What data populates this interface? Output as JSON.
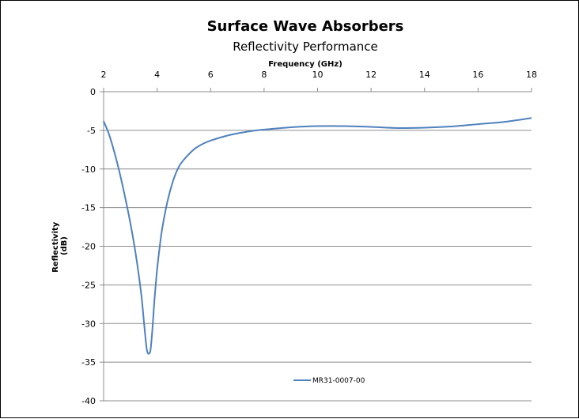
{
  "chart_data": {
    "type": "line",
    "title": "Surface Wave Absorbers",
    "subtitle": "Reflectivity Performance",
    "xlabel": "Frequency (GHz)",
    "ylabel": "Reflectivity (dB)",
    "xlim": [
      2,
      18
    ],
    "ylim": [
      -40,
      0
    ],
    "x_ticks": [
      2,
      4,
      6,
      8,
      10,
      12,
      14,
      16,
      18
    ],
    "y_ticks": [
      0,
      -5,
      -10,
      -15,
      -20,
      -25,
      -30,
      -35,
      -40
    ],
    "x_axis_position": "top",
    "grid": true,
    "legend_position": "bottom-center",
    "series": [
      {
        "name": "MR31-0007-00",
        "color": "#4f81bd",
        "x": [
          2,
          2.2,
          2.4,
          2.6,
          2.8,
          3.0,
          3.2,
          3.4,
          3.5,
          3.6,
          3.65,
          3.7,
          3.75,
          3.8,
          3.85,
          3.9,
          4.0,
          4.1,
          4.2,
          4.4,
          4.6,
          4.8,
          5.0,
          5.4,
          5.8,
          6.2,
          6.6,
          7.0,
          7.5,
          8.0,
          9.0,
          10.0,
          11.0,
          12.0,
          13.0,
          14.0,
          15.0,
          16.0,
          17.0,
          18.0
        ],
        "y": [
          -3.8,
          -5.5,
          -7.8,
          -10.5,
          -13.6,
          -17.0,
          -21.0,
          -26.0,
          -29.5,
          -33.0,
          -33.8,
          -33.9,
          -33.5,
          -31.8,
          -29.5,
          -27.0,
          -23.0,
          -20.0,
          -17.5,
          -14.0,
          -11.5,
          -9.8,
          -8.8,
          -7.4,
          -6.6,
          -6.1,
          -5.7,
          -5.4,
          -5.1,
          -4.9,
          -4.6,
          -4.45,
          -4.45,
          -4.55,
          -4.7,
          -4.65,
          -4.5,
          -4.2,
          -3.9,
          -3.4
        ]
      }
    ]
  }
}
